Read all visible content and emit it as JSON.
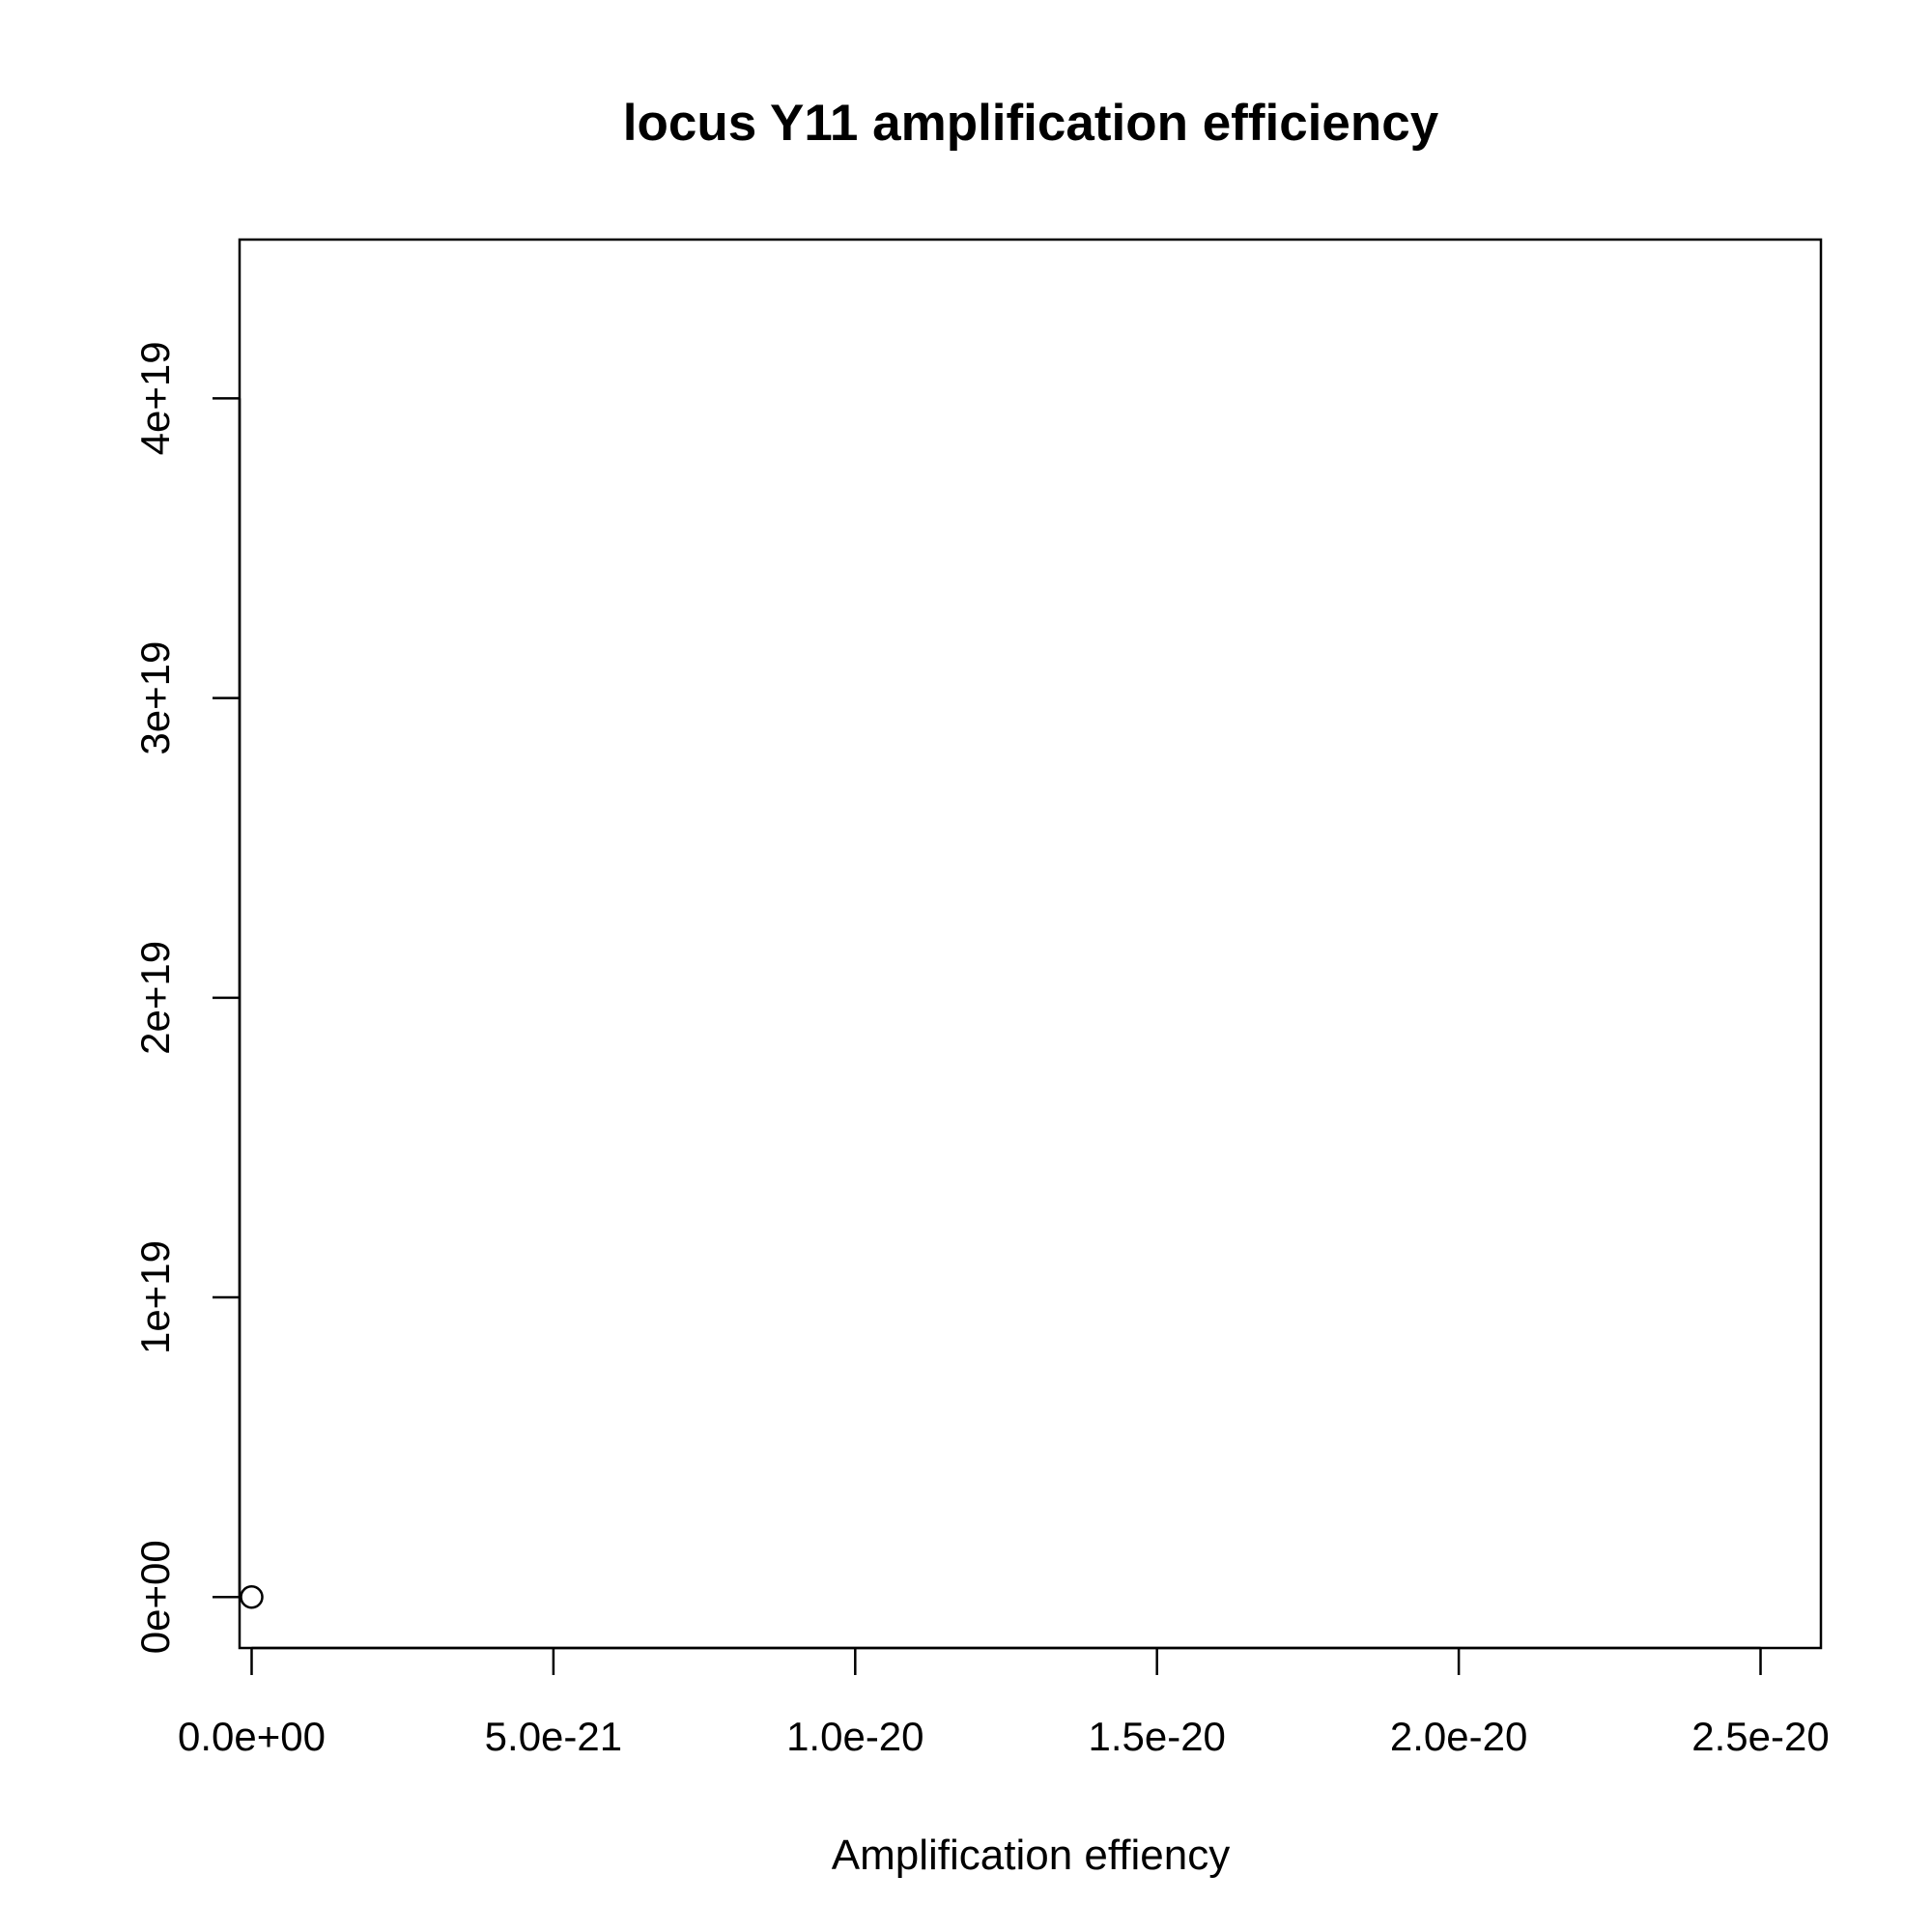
{
  "chart_data": {
    "type": "scatter",
    "title": "locus Y11 amplification efficiency",
    "xlabel": "Amplification effiency",
    "ylabel": "",
    "xlim": [
      -2e-22,
      2.6e-20
    ],
    "ylim": [
      -1.7e+18,
      4.53e+19
    ],
    "x_ticks": [
      0,
      5e-21,
      1e-20,
      1.5e-20,
      2e-20,
      2.5e-20
    ],
    "x_tick_labels": [
      "0.0e+00",
      "5.0e-21",
      "1.0e-20",
      "1.5e-20",
      "2.0e-20",
      "2.5e-20"
    ],
    "y_ticks": [
      0,
      1e+19,
      2e+19,
      3e+19,
      4e+19
    ],
    "y_tick_labels": [
      "0e+00",
      "1e+19",
      "2e+19",
      "3e+19",
      "4e+19"
    ],
    "grid": false,
    "marker": "open-circle",
    "points": [
      {
        "x": 0,
        "y": 0
      }
    ]
  }
}
